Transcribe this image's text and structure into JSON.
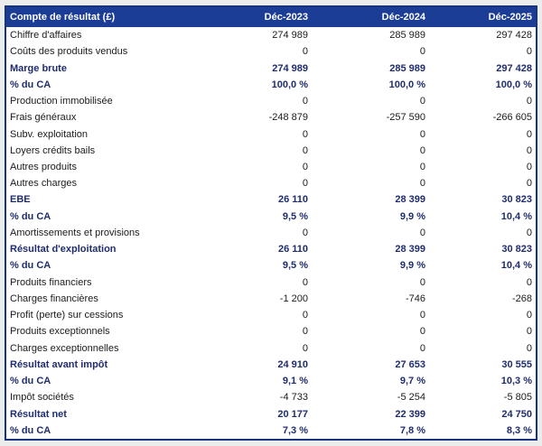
{
  "chart_data": {
    "type": "table",
    "title": "Compte de résultat (£)",
    "columns": [
      "Déc-2023",
      "Déc-2024",
      "Déc-2025"
    ],
    "rows": [
      {
        "label": "Chiffre d'affaires",
        "values": [
          "274 989",
          "285 989",
          "297 428"
        ],
        "bold": false
      },
      {
        "label": "Coûts des produits vendus",
        "values": [
          "0",
          "0",
          "0"
        ],
        "bold": false
      },
      {
        "label": "Marge brute",
        "values": [
          "274 989",
          "285 989",
          "297 428"
        ],
        "bold": true
      },
      {
        "label": "% du CA",
        "values": [
          "100,0 %",
          "100,0 %",
          "100,0 %"
        ],
        "bold": true
      },
      {
        "label": "Production immobilisée",
        "values": [
          "0",
          "0",
          "0"
        ],
        "bold": false
      },
      {
        "label": "Frais généraux",
        "values": [
          "-248 879",
          "-257 590",
          "-266 605"
        ],
        "bold": false
      },
      {
        "label": "Subv. exploitation",
        "values": [
          "0",
          "0",
          "0"
        ],
        "bold": false
      },
      {
        "label": "Loyers crédits bails",
        "values": [
          "0",
          "0",
          "0"
        ],
        "bold": false
      },
      {
        "label": "Autres produits",
        "values": [
          "0",
          "0",
          "0"
        ],
        "bold": false
      },
      {
        "label": "Autres charges",
        "values": [
          "0",
          "0",
          "0"
        ],
        "bold": false
      },
      {
        "label": "EBE",
        "values": [
          "26 110",
          "28 399",
          "30 823"
        ],
        "bold": true
      },
      {
        "label": "% du CA",
        "values": [
          "9,5 %",
          "9,9 %",
          "10,4 %"
        ],
        "bold": true
      },
      {
        "label": "Amortissements et provisions",
        "values": [
          "0",
          "0",
          "0"
        ],
        "bold": false
      },
      {
        "label": "Résultat d'exploitation",
        "values": [
          "26 110",
          "28 399",
          "30 823"
        ],
        "bold": true
      },
      {
        "label": "% du CA",
        "values": [
          "9,5 %",
          "9,9 %",
          "10,4 %"
        ],
        "bold": true
      },
      {
        "label": "Produits financiers",
        "values": [
          "0",
          "0",
          "0"
        ],
        "bold": false
      },
      {
        "label": "Charges financières",
        "values": [
          "-1 200",
          "-746",
          "-268"
        ],
        "bold": false
      },
      {
        "label": "Profit (perte) sur cessions",
        "values": [
          "0",
          "0",
          "0"
        ],
        "bold": false
      },
      {
        "label": "Produits exceptionnels",
        "values": [
          "0",
          "0",
          "0"
        ],
        "bold": false
      },
      {
        "label": "Charges exceptionnelles",
        "values": [
          "0",
          "0",
          "0"
        ],
        "bold": false
      },
      {
        "label": "Résultat avant impôt",
        "values": [
          "24 910",
          "27 653",
          "30 555"
        ],
        "bold": true
      },
      {
        "label": "% du CA",
        "values": [
          "9,1 %",
          "9,7 %",
          "10,3 %"
        ],
        "bold": true
      },
      {
        "label": "Impôt sociétés",
        "values": [
          "-4 733",
          "-5 254",
          "-5 805"
        ],
        "bold": false
      },
      {
        "label": "Résultat net",
        "values": [
          "20 177",
          "22 399",
          "24 750"
        ],
        "bold": true
      },
      {
        "label": "% du CA",
        "values": [
          "7,3 %",
          "7,8 %",
          "8,3 %"
        ],
        "bold": true
      }
    ]
  },
  "colors": {
    "header_bg": "#1c3d96",
    "header_text": "#ffffff",
    "border": "#17357f",
    "bold_text": "#1f2d6e",
    "body_text": "#1b1b1b",
    "page_bg": "#ebecec"
  }
}
